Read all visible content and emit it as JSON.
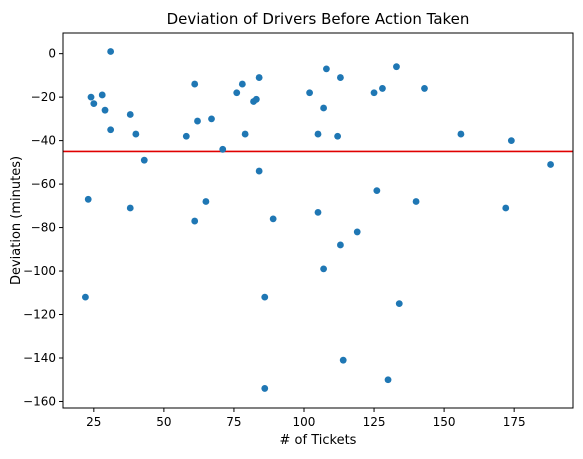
{
  "colors": {
    "points": "#1f77b4",
    "ref_line": "#e00000",
    "axes": "#000000"
  },
  "chart_data": {
    "type": "scatter",
    "title": "Deviation of Drivers Before Action Taken",
    "xlabel": "# of Tickets",
    "ylabel": "Deviation (minutes)",
    "xlim": [
      14,
      196
    ],
    "ylim": [
      -163,
      9.5
    ],
    "x_ticks": [
      25,
      50,
      75,
      100,
      125,
      150,
      175
    ],
    "y_ticks": [
      0,
      -20,
      -40,
      -60,
      -80,
      -100,
      -120,
      -140,
      -160
    ],
    "grid": false,
    "reference_line": {
      "y": -45
    },
    "points": [
      [
        22,
        -112
      ],
      [
        23,
        -67
      ],
      [
        24,
        -20
      ],
      [
        25,
        -23
      ],
      [
        28,
        -19
      ],
      [
        29,
        -26
      ],
      [
        31,
        1
      ],
      [
        31,
        -35
      ],
      [
        38,
        -28
      ],
      [
        38,
        -71
      ],
      [
        40,
        -37
      ],
      [
        43,
        -49
      ],
      [
        58,
        -38
      ],
      [
        61,
        -14
      ],
      [
        61,
        -77
      ],
      [
        62,
        -31
      ],
      [
        65,
        -68
      ],
      [
        67,
        -30
      ],
      [
        71,
        -44
      ],
      [
        76,
        -18
      ],
      [
        78,
        -14
      ],
      [
        79,
        -37
      ],
      [
        82,
        -22
      ],
      [
        83,
        -21
      ],
      [
        84,
        -11
      ],
      [
        84,
        -54
      ],
      [
        86,
        -112
      ],
      [
        86,
        -154
      ],
      [
        89,
        -76
      ],
      [
        102,
        -18
      ],
      [
        105,
        -37
      ],
      [
        105,
        -73
      ],
      [
        107,
        -25
      ],
      [
        107,
        -99
      ],
      [
        108,
        -7
      ],
      [
        112,
        -38
      ],
      [
        113,
        -11
      ],
      [
        113,
        -88
      ],
      [
        114,
        -141
      ],
      [
        119,
        -82
      ],
      [
        125,
        -18
      ],
      [
        126,
        -63
      ],
      [
        128,
        -16
      ],
      [
        130,
        -150
      ],
      [
        133,
        -6
      ],
      [
        134,
        -115
      ],
      [
        140,
        -68
      ],
      [
        143,
        -16
      ],
      [
        156,
        -37
      ],
      [
        172,
        -71
      ],
      [
        174,
        -40
      ],
      [
        188,
        -51
      ]
    ]
  }
}
